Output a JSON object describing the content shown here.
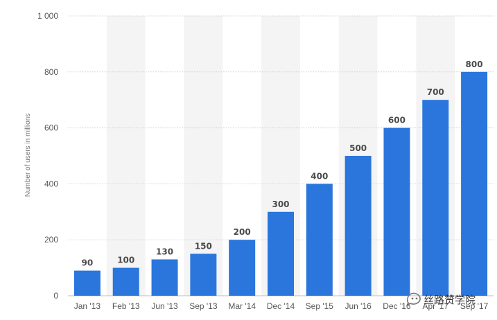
{
  "chart_data": {
    "type": "bar",
    "ylabel": "Number of users in millions",
    "categories": [
      "Jan '13",
      "Feb '13",
      "Jun '13",
      "Sep '13",
      "Mar '14",
      "Dec '14",
      "Sep '15",
      "Jun '16",
      "Dec '16",
      "Apr '17",
      "Sep '17"
    ],
    "values": [
      90,
      100,
      130,
      150,
      200,
      300,
      400,
      500,
      600,
      700,
      800
    ],
    "ylim": [
      0,
      1000
    ],
    "yticks": [
      0,
      200,
      400,
      600,
      800,
      1000
    ],
    "ytick_labels": [
      "0",
      "200",
      "400",
      "600",
      "800",
      "1 000"
    ],
    "grid": true,
    "bar_color": "#2a76dd",
    "band_color": "#f4f4f4"
  },
  "watermark": {
    "text": "丝路赞学院",
    "icon": "wechat-icon"
  }
}
